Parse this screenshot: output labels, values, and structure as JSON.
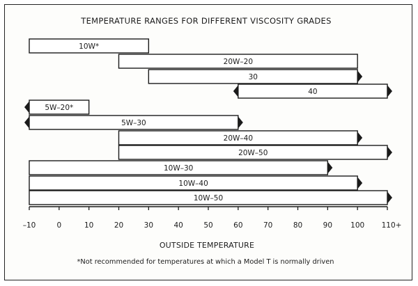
{
  "chart_data": {
    "type": "range-bar",
    "title": "TEMPERATURE RANGES FOR DIFFERENT VISCOSITY GRADES",
    "xlabel": "OUTSIDE TEMPERATURE",
    "footnote": "*Not recommended for temperatures at which a Model T is normally driven",
    "x_ticks": [
      "-10",
      "0",
      "10",
      "20",
      "30",
      "40",
      "50",
      "60",
      "70",
      "80",
      "90",
      "100",
      "110+"
    ],
    "x_range": [
      -10,
      110
    ],
    "bars": [
      {
        "label": "10W*",
        "from": -10,
        "to": 30,
        "arrow_left": false,
        "arrow_right": false
      },
      {
        "label": "20W-20",
        "from": 20,
        "to": 100,
        "arrow_left": false,
        "arrow_right": false
      },
      {
        "label": "30",
        "from": 30,
        "to": 100,
        "arrow_left": false,
        "arrow_right": true
      },
      {
        "label": "40",
        "from": 60,
        "to": 110,
        "arrow_left": true,
        "arrow_right": true
      },
      {
        "label": "5W-20*",
        "from": -10,
        "to": 10,
        "arrow_left": true,
        "arrow_right": false
      },
      {
        "label": "5W-30",
        "from": -10,
        "to": 60,
        "arrow_left": true,
        "arrow_right": true
      },
      {
        "label": "20W-40",
        "from": 20,
        "to": 100,
        "arrow_left": false,
        "arrow_right": true
      },
      {
        "label": "20W-50",
        "from": 20,
        "to": 110,
        "arrow_left": false,
        "arrow_right": true
      },
      {
        "label": "10W-30",
        "from": -10,
        "to": 90,
        "arrow_left": false,
        "arrow_right": true
      },
      {
        "label": "10W-40",
        "from": -10,
        "to": 100,
        "arrow_left": false,
        "arrow_right": true
      },
      {
        "label": "10W-50",
        "from": -10,
        "to": 110,
        "arrow_left": false,
        "arrow_right": true
      }
    ],
    "grid": false,
    "legend": "none"
  }
}
